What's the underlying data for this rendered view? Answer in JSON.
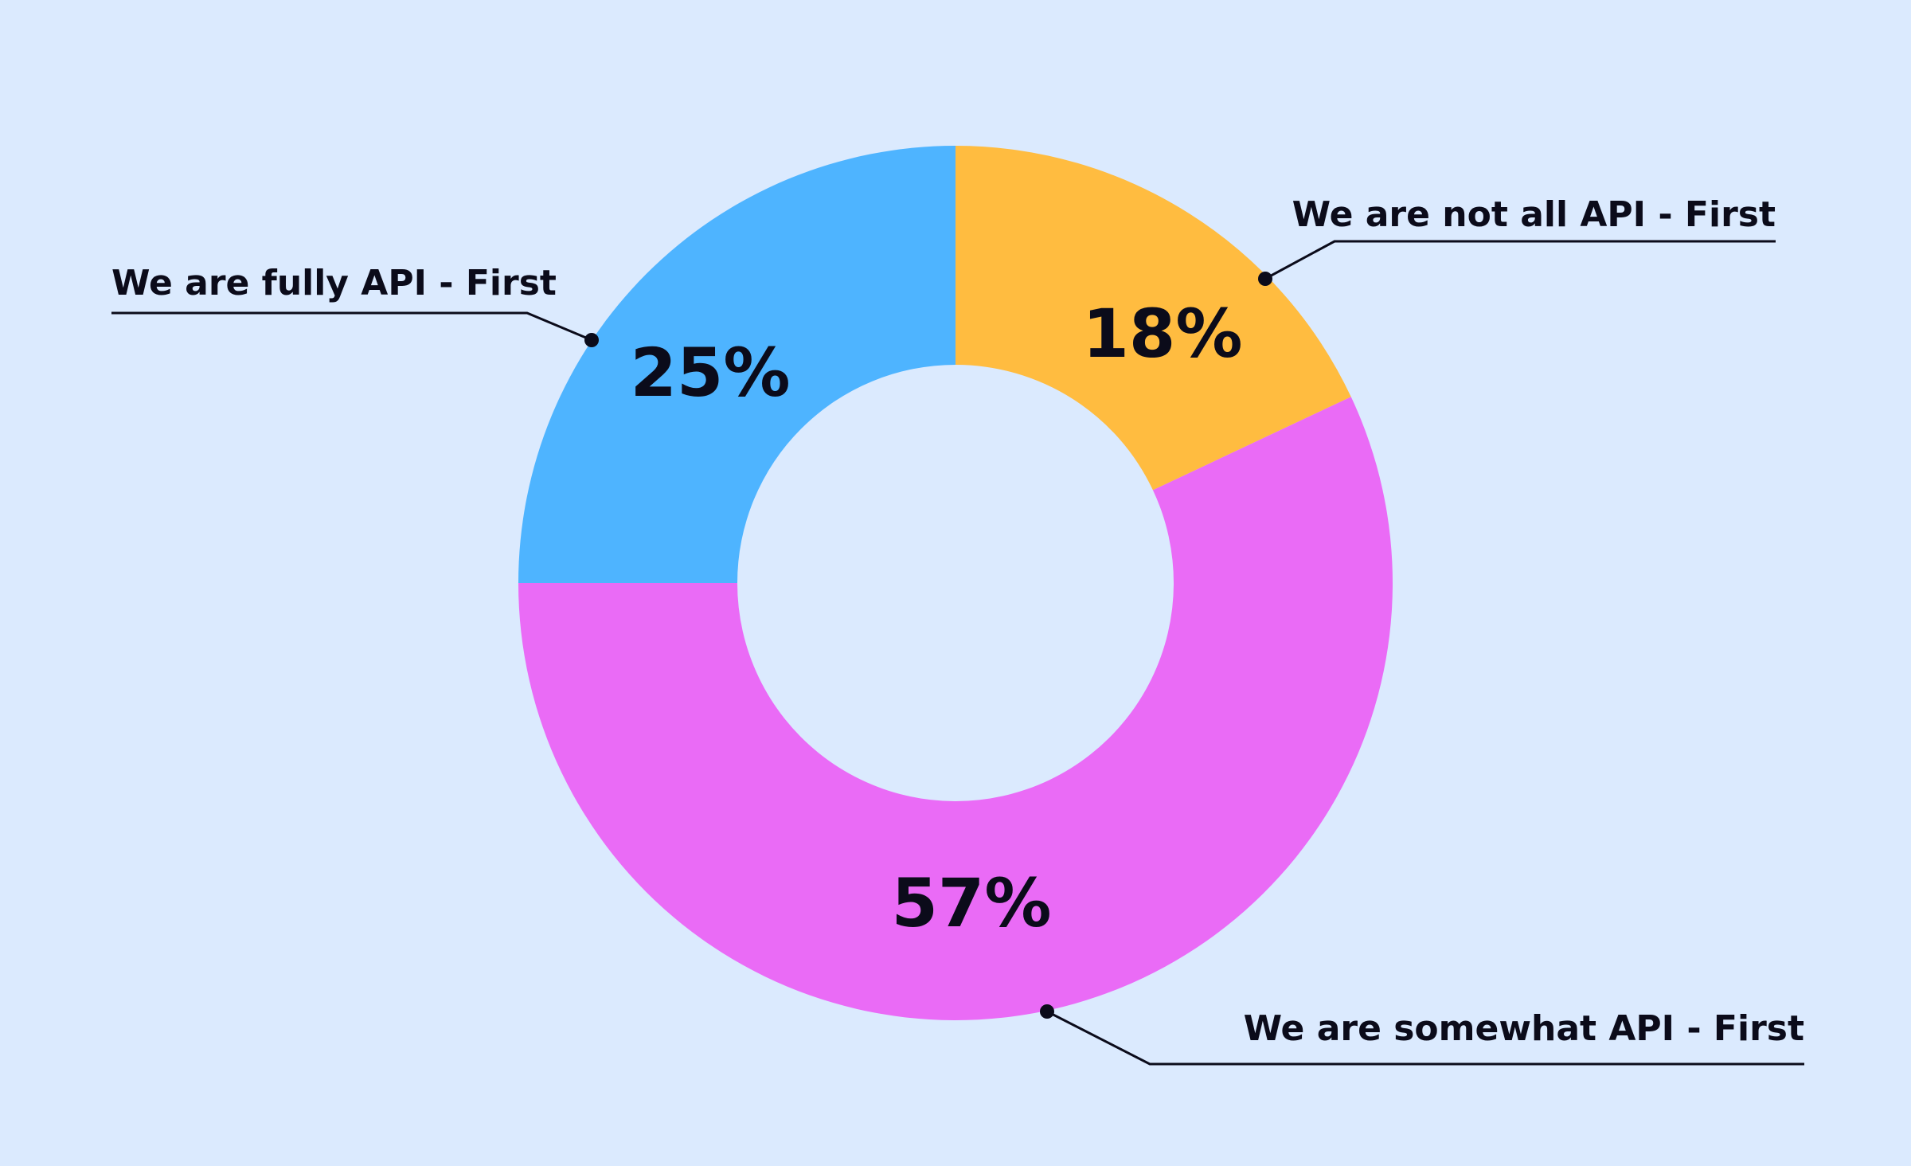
{
  "chart_data": {
    "type": "pie",
    "donut": true,
    "title": "",
    "slices": [
      {
        "label": "We are not all API - First",
        "value": 18,
        "value_label": "18%",
        "color": "#ffbc40"
      },
      {
        "label": "We are somewhat API - First",
        "value": 57,
        "value_label": "57%",
        "color": "#ea6bf6"
      },
      {
        "label": "We are fully API - First",
        "value": 25,
        "value_label": "25%",
        "color": "#4eb4ff"
      }
    ],
    "start_angle_deg": 0,
    "direction": "clockwise",
    "legend": "callouts"
  },
  "colors": {
    "background": "#dbeafe",
    "text": "#0b0b1a"
  }
}
